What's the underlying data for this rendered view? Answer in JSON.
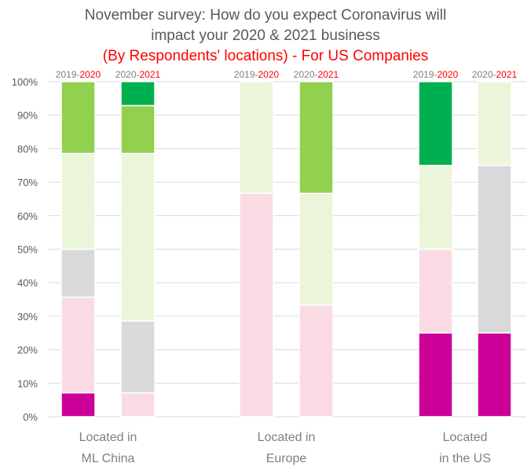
{
  "chart_data": {
    "type": "bar",
    "stacked": true,
    "percent": true,
    "title": "November survey: How do you expect Coronavirus will impact your 2020 & 2021 business",
    "title_lines": [
      "November survey: How do you expect Coronavirus will",
      "impact your 2020 & 2021 business"
    ],
    "subtitle": "(By Respondents' locations) - For US Companies",
    "xlabel": "",
    "ylabel": "",
    "ylim": [
      0,
      100
    ],
    "y_ticks": [
      "0%",
      "10%",
      "20%",
      "30%",
      "40%",
      "50%",
      "60%",
      "70%",
      "80%",
      "90%",
      "100%"
    ],
    "grid": true,
    "legend": "none",
    "groups": [
      {
        "label_lines": [
          "Located in",
          "ML China"
        ],
        "bars": [
          {
            "label_prefix": "2019-",
            "label_suffix": "2020",
            "segments": [
              7.14,
              28.57,
              14.29,
              28.57,
              21.43,
              0
            ]
          },
          {
            "label_prefix": "2020-",
            "label_suffix": "2021",
            "segments": [
              0,
              7.14,
              21.43,
              50.0,
              14.29,
              7.14
            ]
          }
        ]
      },
      {
        "label_lines": [
          "Located in",
          "Europe"
        ],
        "bars": [
          {
            "label_prefix": "2019-",
            "label_suffix": "2020",
            "segments": [
              0,
              66.67,
              0,
              33.33,
              0,
              0
            ]
          },
          {
            "label_prefix": "2020-",
            "label_suffix": "2021",
            "segments": [
              0,
              33.33,
              0,
              33.33,
              33.33,
              0
            ]
          }
        ]
      },
      {
        "label_lines": [
          "Located",
          "in the US"
        ],
        "bars": [
          {
            "label_prefix": "2019-",
            "label_suffix": "2020",
            "segments": [
              25,
              25,
              0,
              25,
              0,
              25
            ]
          },
          {
            "label_prefix": "2020-",
            "label_suffix": "2021",
            "segments": [
              25,
              0,
              50,
              25,
              0,
              0
            ]
          }
        ]
      }
    ],
    "segment_colors": [
      "#cc0099",
      "#fadbe3",
      "#d9d9d9",
      "#ebf5da",
      "#92d050",
      "#00b050"
    ],
    "label_prefix_color": "#7f7f7f",
    "label_suffix_color": "#ff0000"
  }
}
